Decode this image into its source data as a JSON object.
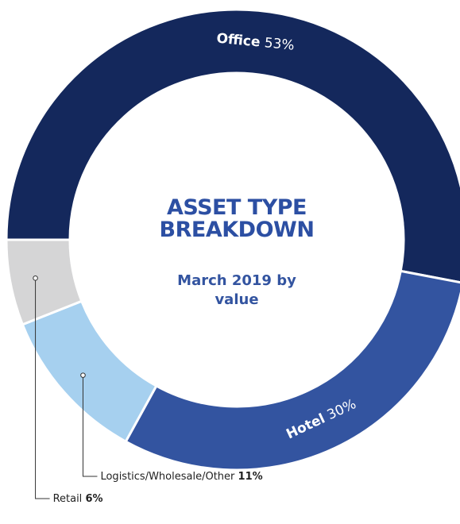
{
  "chart_data": {
    "type": "donut",
    "title": "ASSET TYPE BREAKDOWN",
    "subtitle": "March 2019 by value",
    "categories": [
      "Office",
      "Hotel",
      "Logistics/Wholesale/Other",
      "Retail"
    ],
    "values": [
      53,
      30,
      11,
      6
    ],
    "value_labels": [
      "53%",
      "30%",
      "11%",
      "6%"
    ],
    "colors": [
      "#14285c",
      "#3354a0",
      "#a6d0ef",
      "#d5d5d6"
    ]
  }
}
